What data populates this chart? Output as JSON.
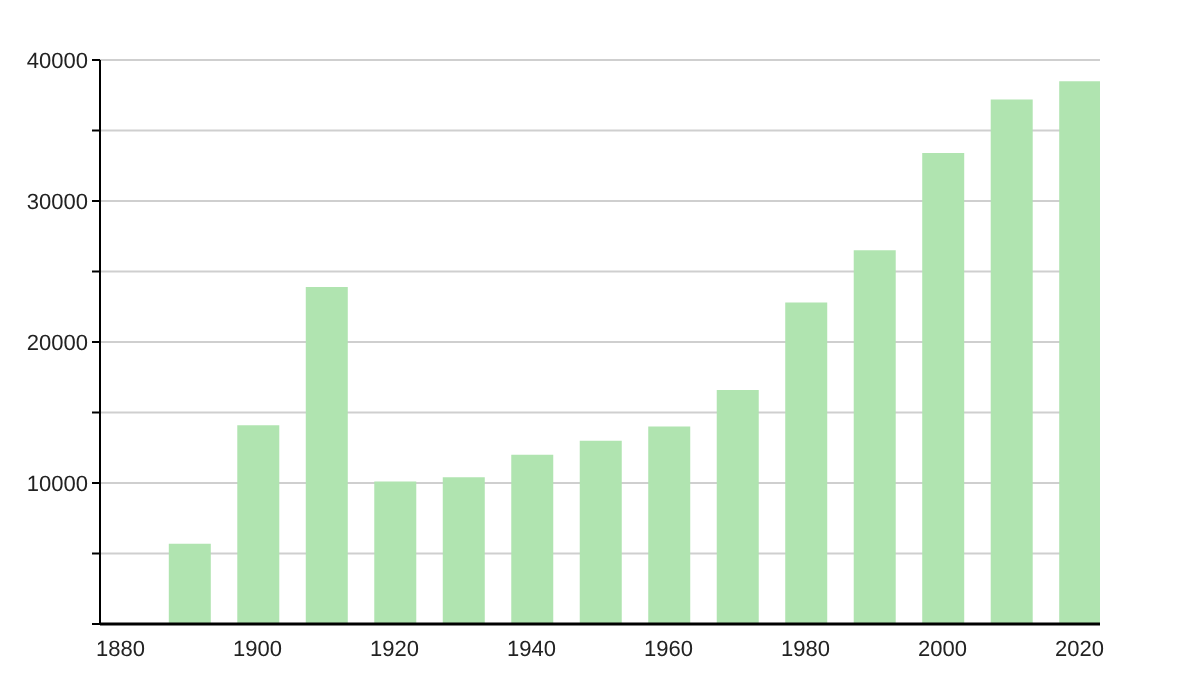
{
  "chart_data": {
    "type": "bar",
    "x": [
      1890,
      1900,
      1910,
      1920,
      1930,
      1940,
      1950,
      1960,
      1970,
      1980,
      1990,
      2000,
      2010,
      2020
    ],
    "values": [
      5700,
      14100,
      23900,
      10100,
      10400,
      12000,
      13000,
      14000,
      16600,
      22800,
      26500,
      33400,
      37200,
      38500
    ],
    "color": "#b0e4b0",
    "xlim": [
      1877,
      2023
    ],
    "xticks": [
      1880,
      1900,
      1920,
      1940,
      1960,
      1980,
      2000,
      2020
    ],
    "ylim": [
      0,
      40000
    ],
    "yticks": [
      {
        "value": 0,
        "label": null
      },
      {
        "value": 5000,
        "label": null
      },
      10000,
      {
        "value": 15000,
        "label": null
      },
      20000,
      {
        "value": 25000,
        "label": null
      },
      30000,
      {
        "value": 35000,
        "label": null
      },
      40000
    ],
    "grid": "y"
  }
}
